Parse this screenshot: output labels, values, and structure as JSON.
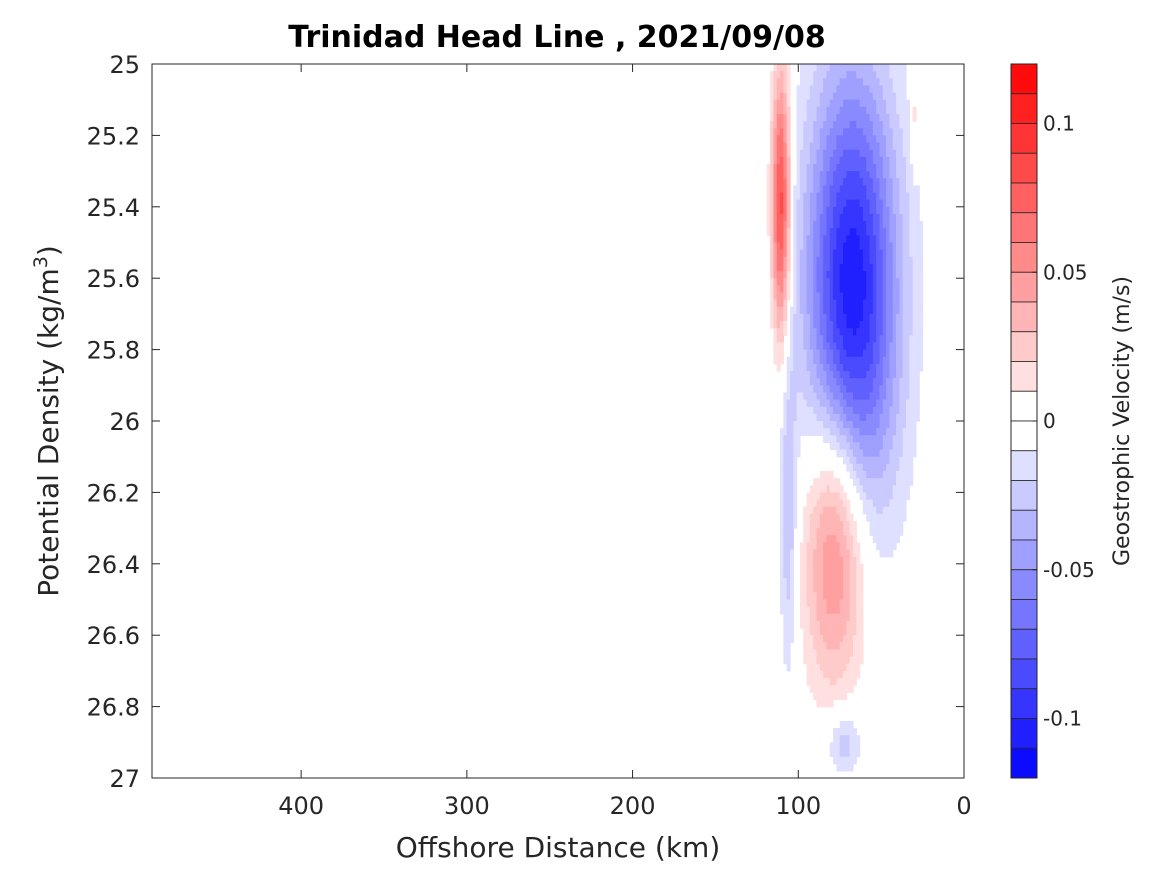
{
  "chart_data": {
    "type": "contour",
    "title": "Trinidad Head Line , 2021/09/08",
    "xlabel": "Offshore Distance (km)",
    "ylabel_parts": [
      "Potential Density (kg/m",
      "3",
      ")"
    ],
    "colorbar_label": "Geostrophic Velocity (m/s)",
    "xlim": [
      490,
      0
    ],
    "ylim": [
      25,
      27
    ],
    "x_ticks": [
      400,
      300,
      200,
      100,
      0
    ],
    "y_ticks": [
      25,
      25.2,
      25.4,
      25.6,
      25.8,
      26,
      26.2,
      26.4,
      26.6,
      26.8,
      27
    ],
    "x_tick_labels": [
      "400",
      "300",
      "200",
      "100",
      "0"
    ],
    "y_tick_labels": [
      "25",
      "25.2",
      "25.4",
      "25.6",
      "25.8",
      "26",
      "26.2",
      "26.4",
      "26.6",
      "26.8",
      "27"
    ],
    "colorbar_range": [
      -0.12,
      0.12
    ],
    "colorbar_levels": 24,
    "colorbar_ticks": [
      0.1,
      0.05,
      0,
      -0.05,
      -0.1
    ],
    "colorbar_tick_labels": [
      "0.1",
      "0.05",
      "0",
      "-0.05",
      "-0.1"
    ],
    "colormap": {
      "negative": "#0000ff",
      "zero": "#ffffff",
      "positive": "#ff0000"
    },
    "features": [
      {
        "name": "nearshore-red-band-top",
        "sign": "positive",
        "distance_km": [
          104,
          117
        ],
        "density_range": [
          25.0,
          25.8
        ],
        "peak_velocity": 0.09
      },
      {
        "name": "blue-core-upper",
        "sign": "negative",
        "distance_km": [
          35,
          100
        ],
        "density_range": [
          25.0,
          26.3
        ],
        "peak_velocity": -0.11
      },
      {
        "name": "blue-band-lower-offshore",
        "sign": "negative",
        "distance_km": [
          100,
          112
        ],
        "density_range": [
          25.8,
          26.75
        ],
        "peak_velocity": -0.03
      },
      {
        "name": "red-core-lower",
        "sign": "positive",
        "distance_km": [
          55,
          100
        ],
        "density_range": [
          25.9,
          26.75
        ],
        "peak_velocity": 0.07
      },
      {
        "name": "blue-patch-bottom",
        "sign": "negative",
        "distance_km": [
          60,
          85
        ],
        "density_range": [
          26.8,
          27.0
        ],
        "peak_velocity": -0.03
      },
      {
        "name": "red-sliver-coastal-top",
        "sign": "positive",
        "distance_km": [
          28,
          33
        ],
        "density_range": [
          25.0,
          25.3
        ],
        "peak_velocity": 0.02
      }
    ]
  }
}
